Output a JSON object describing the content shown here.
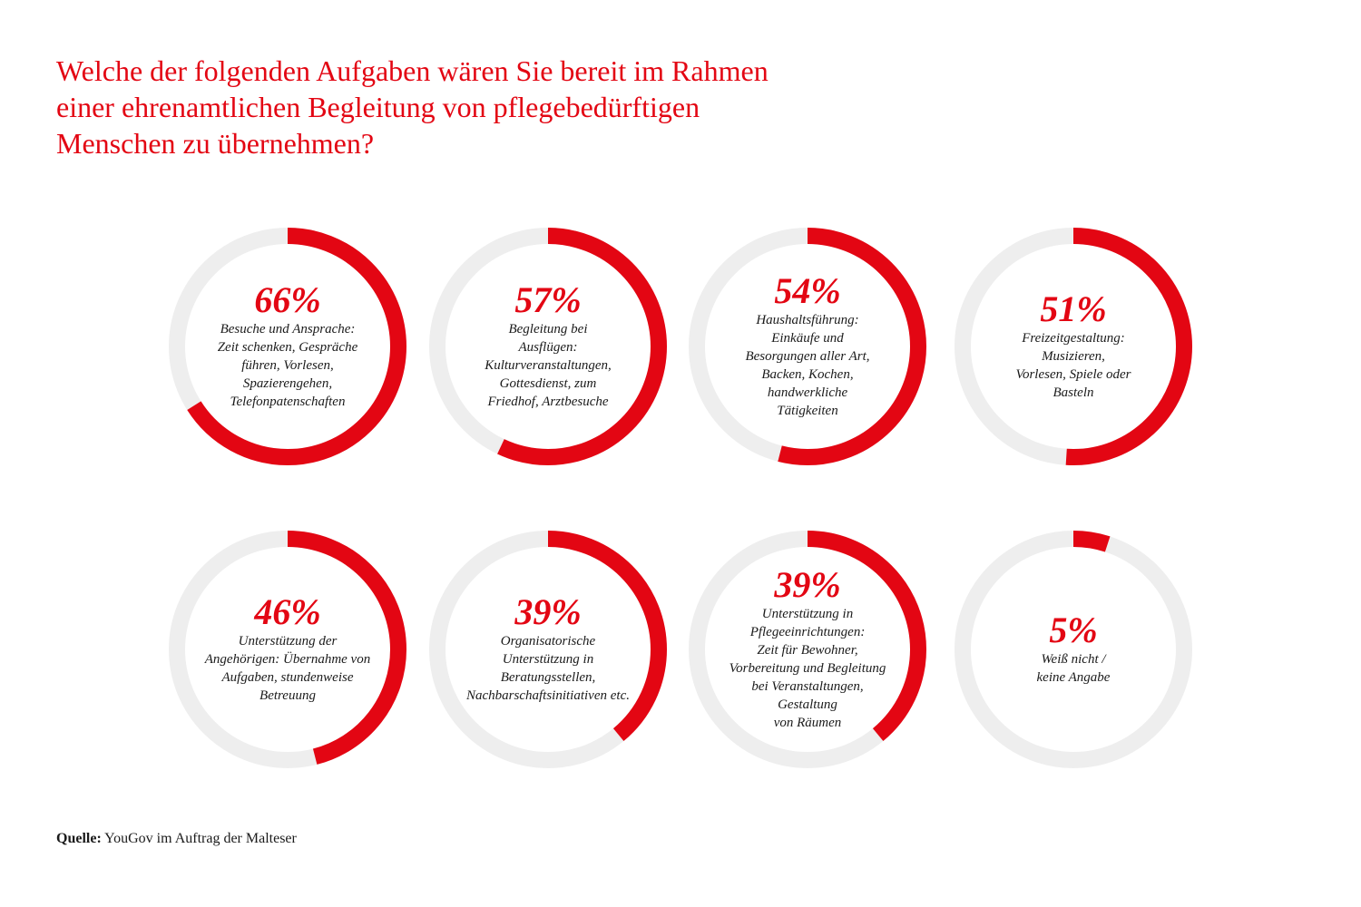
{
  "title_lines": [
    "Welche der folgenden Aufgaben wären Sie bereit im Rahmen",
    "einer ehrenamtlichen Begleitung von pflegebedürftigen",
    "Menschen zu übernehmen?"
  ],
  "colors": {
    "accent": "#e30613",
    "track": "#eeeeee",
    "text": "#1a1a1a"
  },
  "chart_data": {
    "type": "donut",
    "unit": "%",
    "items": [
      {
        "value": 66,
        "value_label": "66%",
        "label_lines": [
          "Besuche und Ansprache:",
          "Zeit schenken, Gespräche",
          "führen, Vorlesen,",
          "Spazierengehen,",
          "Telefonpatenschaften"
        ]
      },
      {
        "value": 57,
        "value_label": "57%",
        "label_lines": [
          "Begleitung bei",
          "Ausflügen:",
          "Kulturveranstaltungen,",
          "Gottesdienst, zum",
          "Friedhof, Arztbesuche"
        ]
      },
      {
        "value": 54,
        "value_label": "54%",
        "label_lines": [
          "Haushaltsführung:",
          "Einkäufe und",
          "Besorgungen aller Art,",
          "Backen, Kochen,",
          "handwerkliche",
          "Tätigkeiten"
        ]
      },
      {
        "value": 51,
        "value_label": "51%",
        "label_lines": [
          "Freizeitgestaltung:",
          "Musizieren,",
          "Vorlesen, Spiele oder",
          "Basteln"
        ]
      },
      {
        "value": 46,
        "value_label": "46%",
        "label_lines": [
          "Unterstützung der",
          "Angehörigen: Übernahme von",
          "Aufgaben, stundenweise",
          "Betreuung"
        ]
      },
      {
        "value": 39,
        "value_label": "39%",
        "label_lines": [
          "Organisatorische",
          "Unterstützung in",
          "Beratungsstellen,",
          "Nachbarschaftsinitiativen etc."
        ]
      },
      {
        "value": 39,
        "value_label": "39%",
        "label_lines": [
          "Unterstützung in",
          "Pflegeeinrichtungen:",
          "Zeit für Bewohner,",
          "Vorbereitung und Begleitung",
          "bei Veranstaltungen,",
          "Gestaltung",
          "von Räumen"
        ]
      },
      {
        "value": 5,
        "value_label": "5%",
        "label_lines": [
          "Weiß nicht /",
          "keine Angabe"
        ]
      }
    ]
  },
  "source": {
    "label": "Quelle:",
    "text": " YouGov im Auftrag der Malteser"
  }
}
